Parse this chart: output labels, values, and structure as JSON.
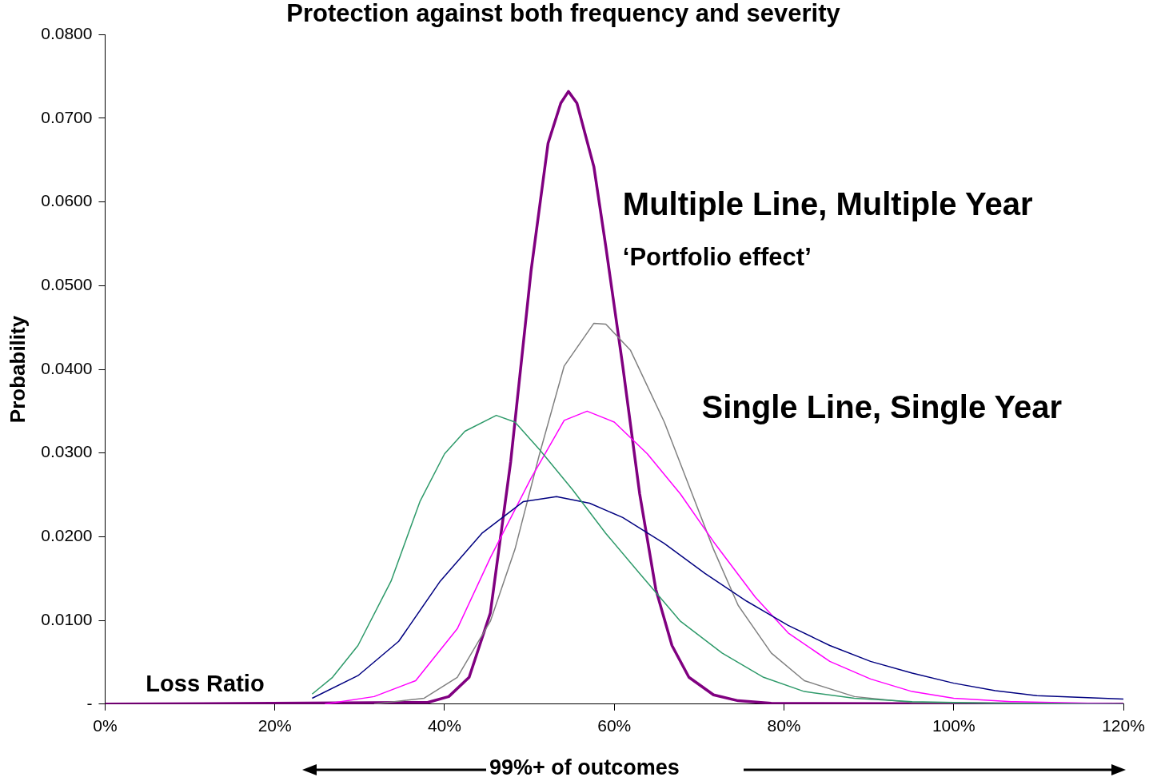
{
  "chart_data": {
    "type": "line",
    "title": "Protection against both frequency and severity",
    "ylabel": "Probability",
    "xlim": [
      0,
      120
    ],
    "xticks": [
      {
        "value": 0,
        "label": "0%"
      },
      {
        "value": 20,
        "label": "20%"
      },
      {
        "value": 40,
        "label": "40%"
      },
      {
        "value": 60,
        "label": "60%"
      },
      {
        "value": 80,
        "label": "80%"
      },
      {
        "value": 100,
        "label": "100%"
      },
      {
        "value": 120,
        "label": "120%"
      }
    ],
    "ylim": [
      0,
      0.08
    ],
    "yticks": [
      {
        "value": 0,
        "label": "-"
      },
      {
        "value": 0.01,
        "label": "0.0100"
      },
      {
        "value": 0.02,
        "label": "0.0200"
      },
      {
        "value": 0.03,
        "label": "0.0300"
      },
      {
        "value": 0.04,
        "label": "0.0400"
      },
      {
        "value": 0.05,
        "label": "0.0500"
      },
      {
        "value": 0.06,
        "label": "0.0600"
      },
      {
        "value": 0.07,
        "label": "0.0700"
      },
      {
        "value": 0.08,
        "label": "0.0800"
      }
    ],
    "grid": false,
    "legend": false,
    "marker": "none",
    "annotations": [
      "Multiple Line, Multiple Year",
      "‘Portfolio effect’",
      "Single Line, Single Year",
      "Loss Ratio",
      "99%+ of outcomes"
    ],
    "series": [
      {
        "color": "#2e9a6a",
        "x": [
          24.4,
          26.8,
          29.8,
          33.7,
          37.1,
          40,
          42.4,
          46.1,
          48.3,
          51.2,
          55.1,
          59,
          63,
          67.8,
          72.7,
          77.6,
          82.4,
          88.3,
          95.1,
          104.9,
          120
        ],
        "values": [
          0.0012,
          0.0032,
          0.007,
          0.0147,
          0.0242,
          0.0299,
          0.0326,
          0.0345,
          0.0337,
          0.0304,
          0.0256,
          0.0204,
          0.0156,
          0.0099,
          0.0061,
          0.0032,
          0.0015,
          0.0007,
          0.0003,
          0.0001,
          0
        ]
      },
      {
        "color": "#000080",
        "x": [
          24.4,
          29.8,
          34.6,
          39.5,
          44.4,
          49.3,
          53.2,
          57.1,
          61,
          65.9,
          70.7,
          75.6,
          80.5,
          85.4,
          90.2,
          95.1,
          100,
          104.9,
          109.8,
          120
        ],
        "values": [
          0.0007,
          0.0034,
          0.0075,
          0.0147,
          0.0204,
          0.0242,
          0.0248,
          0.024,
          0.0223,
          0.0192,
          0.0156,
          0.0123,
          0.0094,
          0.007,
          0.0051,
          0.0037,
          0.0025,
          0.0016,
          0.001,
          0.0006
        ]
      },
      {
        "color": "#ff00ff",
        "x": [
          25.9,
          31.7,
          36.6,
          41.5,
          45.4,
          50.2,
          54.1,
          56.8,
          60,
          63.9,
          67.8,
          71.7,
          76.6,
          80.5,
          85.4,
          90.2,
          95.1,
          100,
          106.8,
          120
        ],
        "values": [
          0,
          0.0009,
          0.0028,
          0.009,
          0.0175,
          0.027,
          0.0339,
          0.035,
          0.0337,
          0.0299,
          0.0251,
          0.0194,
          0.0128,
          0.0085,
          0.0051,
          0.003,
          0.0015,
          0.0007,
          0.0003,
          0
        ]
      },
      {
        "color": "#808080",
        "x": [
          31.7,
          37.6,
          41.5,
          45.4,
          48.3,
          51.2,
          54.1,
          57.6,
          59,
          61.9,
          65.9,
          68.8,
          71.7,
          74.6,
          78.5,
          82.4,
          88.3,
          95.1,
          120
        ],
        "values": [
          0,
          0.0007,
          0.0032,
          0.0099,
          0.0185,
          0.0299,
          0.0404,
          0.0455,
          0.0454,
          0.0423,
          0.0337,
          0.0261,
          0.0185,
          0.0118,
          0.0061,
          0.0028,
          0.0009,
          0.0002,
          0
        ]
      },
      {
        "color": "#800080",
        "x": [
          0,
          38,
          40.5,
          42.9,
          45.4,
          47.8,
          50.2,
          52.2,
          53.7,
          54.6,
          55.6,
          57.6,
          59,
          61,
          63,
          64.9,
          66.8,
          68.8,
          71.7,
          74.6,
          78.5,
          120
        ],
        "values": [
          0,
          0.0002,
          0.0009,
          0.0032,
          0.0109,
          0.029,
          0.0518,
          0.067,
          0.0718,
          0.0732,
          0.0718,
          0.0642,
          0.0547,
          0.0404,
          0.0251,
          0.0137,
          0.007,
          0.0032,
          0.0011,
          0.0004,
          0.0001,
          0
        ]
      }
    ]
  }
}
